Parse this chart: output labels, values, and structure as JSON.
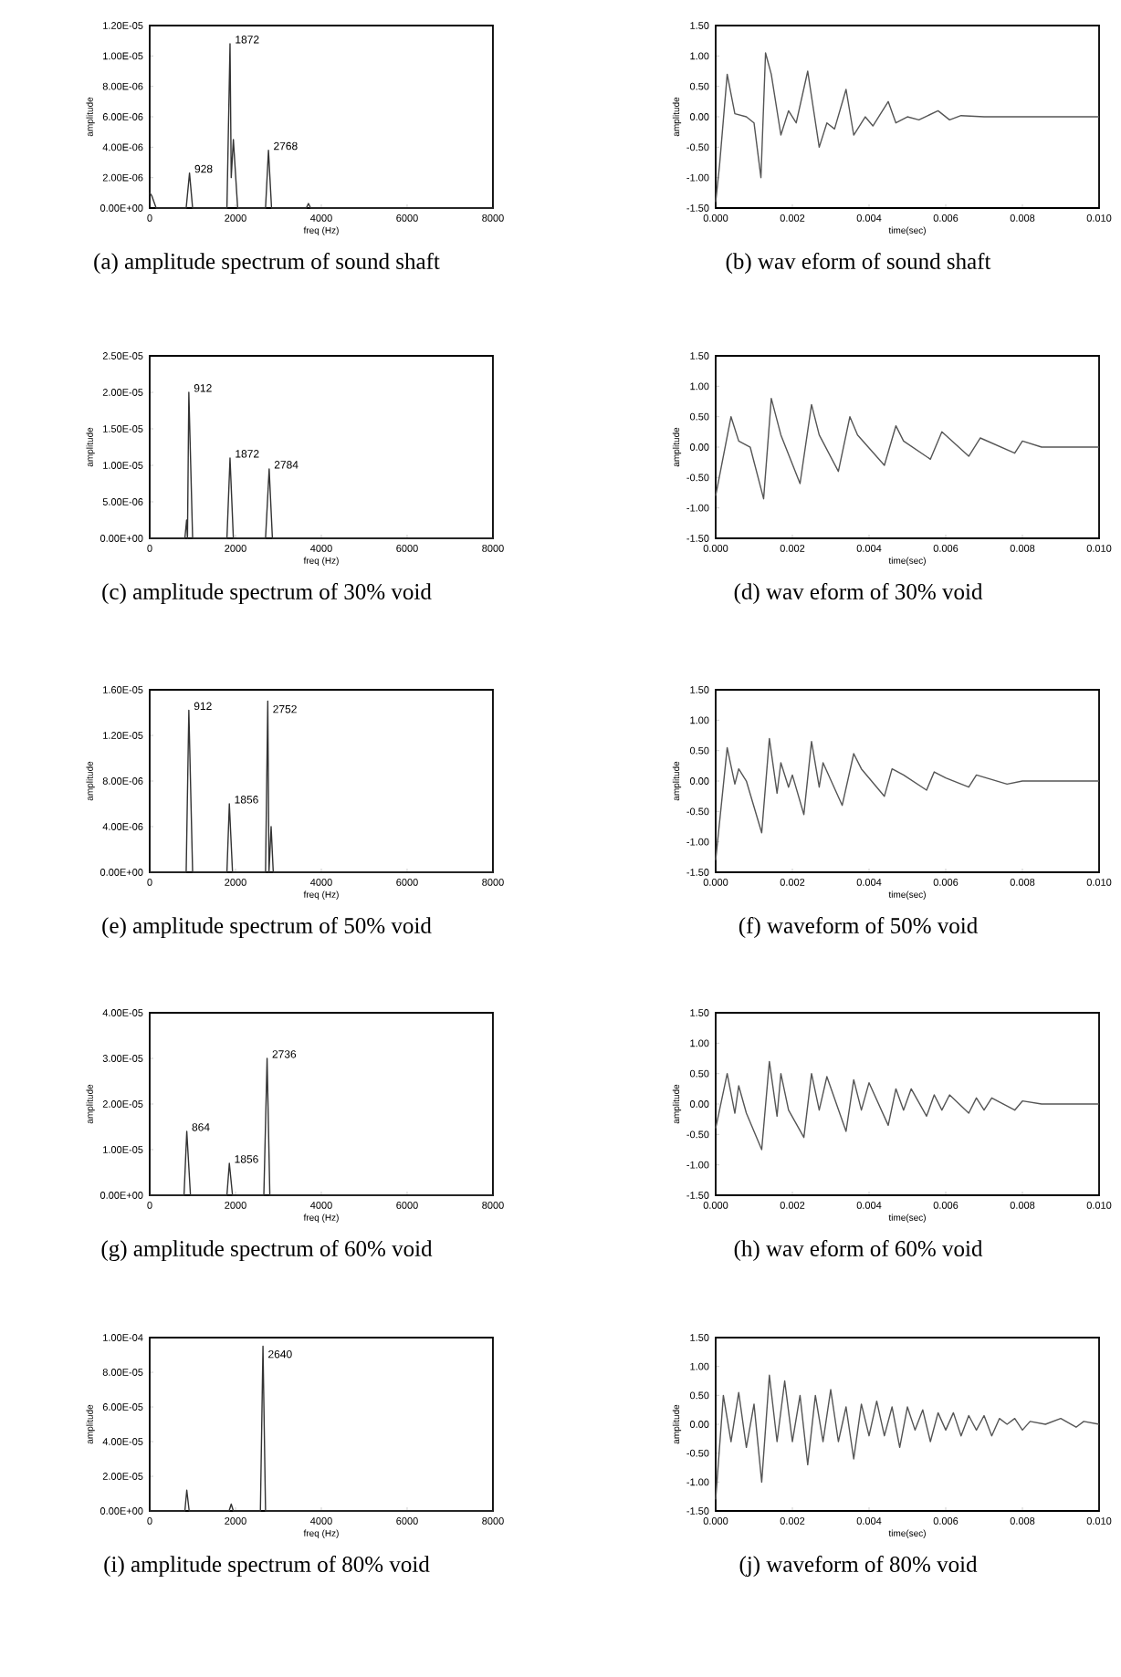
{
  "chart_data": [
    {
      "type": "line",
      "title": "(a) amplitude spectrum of sound shaft",
      "xlabel": "freq (Hz)",
      "ylabel": "amplitude",
      "xlim": [
        0,
        8000
      ],
      "ylim": [
        0,
        1.2e-05
      ],
      "xticks": [
        0,
        2000,
        4000,
        6000,
        8000
      ],
      "yticks": [
        {
          "value": 0,
          "label": "0.00E+00"
        },
        {
          "value": 2e-06,
          "label": "2.00E-06"
        },
        {
          "value": 4e-06,
          "label": "4.00E-06"
        },
        {
          "value": 6e-06,
          "label": "6.00E-06"
        },
        {
          "value": 8e-06,
          "label": "8.00E-06"
        },
        {
          "value": 1e-05,
          "label": "1.00E-05"
        },
        {
          "value": 1.2e-05,
          "label": "1.20E-05"
        }
      ],
      "series": [
        {
          "color": "#333333",
          "x": [
            0,
            50,
            150,
            850,
            928,
            1000,
            1800,
            1872,
            1900,
            1950,
            2050,
            2700,
            2768,
            2840,
            3650,
            3700,
            3750,
            8000
          ],
          "values": [
            1e-06,
            8e-07,
            0,
            0,
            2.3e-06,
            0,
            0,
            1.08e-05,
            2e-06,
            4.5e-06,
            0,
            0,
            3.8e-06,
            0,
            0,
            3e-07,
            0,
            0
          ]
        }
      ],
      "annotations": [
        {
          "text": "928",
          "x": 928,
          "y": 2.3e-06
        },
        {
          "text": "1872",
          "x": 1872,
          "y": 1.08e-05
        },
        {
          "text": "2768",
          "x": 2768,
          "y": 3.8e-06
        }
      ]
    },
    {
      "type": "line",
      "title": "(b) wav eform of sound shaft",
      "xlabel": "time(sec)",
      "ylabel": "amplitude",
      "xlim": [
        0,
        0.01
      ],
      "ylim": [
        -1.5,
        1.5
      ],
      "xticks": [
        {
          "value": 0,
          "label": "0.000"
        },
        {
          "value": 0.002,
          "label": "0.002"
        },
        {
          "value": 0.004,
          "label": "0.004"
        },
        {
          "value": 0.006,
          "label": "0.006"
        },
        {
          "value": 0.008,
          "label": "0.008"
        },
        {
          "value": 0.01,
          "label": "0.010"
        }
      ],
      "yticks": [
        {
          "value": -1.5,
          "label": "-1.50"
        },
        {
          "value": -1,
          "label": "-1.00"
        },
        {
          "value": -0.5,
          "label": "-0.50"
        },
        {
          "value": 0,
          "label": "0.00"
        },
        {
          "value": 0.5,
          "label": "0.50"
        },
        {
          "value": 1,
          "label": "1.00"
        },
        {
          "value": 1.5,
          "label": "1.50"
        }
      ],
      "series": [
        {
          "color": "#555555",
          "x": [
            0,
            0.0001,
            0.0003,
            0.0005,
            0.0008,
            0.001,
            0.00118,
            0.0013,
            0.00145,
            0.0017,
            0.0019,
            0.0021,
            0.0024,
            0.0027,
            0.0029,
            0.0031,
            0.0034,
            0.0036,
            0.0039,
            0.0041,
            0.0045,
            0.0047,
            0.005,
            0.0053,
            0.0058,
            0.0061,
            0.0064,
            0.007,
            0.01
          ],
          "values": [
            -1.4,
            -0.8,
            0.7,
            0.05,
            0,
            -0.1,
            -1.0,
            1.05,
            0.7,
            -0.3,
            0.1,
            -0.1,
            0.75,
            -0.5,
            -0.1,
            -0.2,
            0.45,
            -0.3,
            0,
            -0.15,
            0.25,
            -0.1,
            0,
            -0.05,
            0.1,
            -0.05,
            0.02,
            0,
            0
          ]
        }
      ]
    },
    {
      "type": "line",
      "title": "(c) amplitude spectrum of 30% void",
      "xlabel": "freq (Hz)",
      "ylabel": "amplitude",
      "xlim": [
        0,
        8000
      ],
      "ylim": [
        0,
        2.5e-05
      ],
      "xticks": [
        0,
        2000,
        4000,
        6000,
        8000
      ],
      "yticks": [
        {
          "value": 0,
          "label": "0.00E+00"
        },
        {
          "value": 5e-06,
          "label": "5.00E-06"
        },
        {
          "value": 1e-05,
          "label": "1.00E-05"
        },
        {
          "value": 1.5e-05,
          "label": "1.50E-05"
        },
        {
          "value": 2e-05,
          "label": "2.00E-05"
        },
        {
          "value": 2.5e-05,
          "label": "2.50E-05"
        }
      ],
      "series": [
        {
          "color": "#333333",
          "x": [
            0,
            820,
            860,
            880,
            912,
            1000,
            1050,
            1800,
            1872,
            1950,
            2700,
            2784,
            2860,
            8000
          ],
          "values": [
            0,
            0,
            2.5e-06,
            0,
            2e-05,
            0,
            0,
            0,
            1.1e-05,
            0,
            0,
            9.5e-06,
            0,
            0
          ]
        }
      ],
      "annotations": [
        {
          "text": "912",
          "x": 912,
          "y": 2e-05
        },
        {
          "text": "1872",
          "x": 1872,
          "y": 1.1e-05
        },
        {
          "text": "2784",
          "x": 2784,
          "y": 9.5e-06
        }
      ]
    },
    {
      "type": "line",
      "title": "(d) wav eform of 30% void",
      "xlabel": "time(sec)",
      "ylabel": "amplitude",
      "xlim": [
        0,
        0.01
      ],
      "ylim": [
        -1.5,
        1.5
      ],
      "xticks": [
        {
          "value": 0,
          "label": "0.000"
        },
        {
          "value": 0.002,
          "label": "0.002"
        },
        {
          "value": 0.004,
          "label": "0.004"
        },
        {
          "value": 0.006,
          "label": "0.006"
        },
        {
          "value": 0.008,
          "label": "0.008"
        },
        {
          "value": 0.01,
          "label": "0.010"
        }
      ],
      "yticks": [
        {
          "value": -1.5,
          "label": "-1.50"
        },
        {
          "value": -1,
          "label": "-1.00"
        },
        {
          "value": -0.5,
          "label": "-0.50"
        },
        {
          "value": 0,
          "label": "0.00"
        },
        {
          "value": 0.5,
          "label": "0.50"
        },
        {
          "value": 1,
          "label": "1.00"
        },
        {
          "value": 1.5,
          "label": "1.50"
        }
      ],
      "series": [
        {
          "color": "#555555",
          "x": [
            0,
            0.0004,
            0.0006,
            0.0009,
            0.00125,
            0.00145,
            0.0017,
            0.0022,
            0.0025,
            0.0027,
            0.0032,
            0.0035,
            0.0037,
            0.0044,
            0.0047,
            0.0049,
            0.0056,
            0.0059,
            0.0066,
            0.0069,
            0.0078,
            0.008,
            0.0085,
            0.01
          ],
          "values": [
            -0.8,
            0.5,
            0.1,
            0,
            -0.85,
            0.8,
            0.2,
            -0.6,
            0.7,
            0.2,
            -0.4,
            0.5,
            0.2,
            -0.3,
            0.35,
            0.1,
            -0.2,
            0.25,
            -0.15,
            0.15,
            -0.1,
            0.1,
            0,
            0
          ]
        }
      ]
    },
    {
      "type": "line",
      "title": "(e) amplitude spectrum of 50% void",
      "xlabel": "freq (Hz)",
      "ylabel": "amplitude",
      "xlim": [
        0,
        8000
      ],
      "ylim": [
        0,
        1.6e-05
      ],
      "xticks": [
        0,
        2000,
        4000,
        6000,
        8000
      ],
      "yticks": [
        {
          "value": 0,
          "label": "0.00E+00"
        },
        {
          "value": 4e-06,
          "label": "4.00E-06"
        },
        {
          "value": 8e-06,
          "label": "8.00E-06"
        },
        {
          "value": 1.2e-05,
          "label": "1.20E-05"
        },
        {
          "value": 1.6e-05,
          "label": "1.60E-05"
        }
      ],
      "series": [
        {
          "color": "#333333",
          "x": [
            0,
            850,
            912,
            1000,
            1800,
            1856,
            1930,
            2700,
            2752,
            2780,
            2830,
            2880,
            8000
          ],
          "values": [
            0,
            0,
            1.42e-05,
            0,
            0,
            6e-06,
            0,
            0,
            1.5e-05,
            0,
            4e-06,
            0,
            0
          ]
        }
      ],
      "annotations": [
        {
          "text": "912",
          "x": 912,
          "y": 1.42e-05
        },
        {
          "text": "1856",
          "x": 1856,
          "y": 6e-06
        },
        {
          "text": "2752",
          "x": 2752,
          "y": 1.5e-05
        }
      ]
    },
    {
      "type": "line",
      "title": "(f) waveform of 50% void",
      "xlabel": "time(sec)",
      "ylabel": "amplitude",
      "xlim": [
        0,
        0.01
      ],
      "ylim": [
        -1.5,
        1.5
      ],
      "xticks": [
        {
          "value": 0,
          "label": "0.000"
        },
        {
          "value": 0.002,
          "label": "0.002"
        },
        {
          "value": 0.004,
          "label": "0.004"
        },
        {
          "value": 0.006,
          "label": "0.006"
        },
        {
          "value": 0.008,
          "label": "0.008"
        },
        {
          "value": 0.01,
          "label": "0.010"
        }
      ],
      "yticks": [
        {
          "value": -1.5,
          "label": "-1.50"
        },
        {
          "value": -1,
          "label": "-1.00"
        },
        {
          "value": -0.5,
          "label": "-0.50"
        },
        {
          "value": 0,
          "label": "0.00"
        },
        {
          "value": 0.5,
          "label": "0.50"
        },
        {
          "value": 1,
          "label": "1.00"
        },
        {
          "value": 1.5,
          "label": "1.50"
        }
      ],
      "series": [
        {
          "color": "#555555",
          "x": [
            0,
            0.0003,
            0.0005,
            0.0006,
            0.0008,
            0.0012,
            0.0014,
            0.0016,
            0.0017,
            0.0019,
            0.002,
            0.0023,
            0.0025,
            0.0027,
            0.0028,
            0.0033,
            0.0036,
            0.0038,
            0.0044,
            0.0046,
            0.0049,
            0.0055,
            0.0057,
            0.006,
            0.0066,
            0.0068,
            0.0076,
            0.008,
            0.01
          ],
          "values": [
            -1.3,
            0.55,
            -0.05,
            0.2,
            0,
            -0.85,
            0.7,
            -0.2,
            0.3,
            -0.1,
            0.1,
            -0.55,
            0.65,
            -0.1,
            0.3,
            -0.4,
            0.45,
            0.2,
            -0.25,
            0.2,
            0.1,
            -0.15,
            0.15,
            0.05,
            -0.1,
            0.1,
            -0.05,
            0,
            0
          ]
        }
      ]
    },
    {
      "type": "line",
      "title": "(g) amplitude spectrum of 60% void",
      "xlabel": "freq (Hz)",
      "ylabel": "amplitude",
      "xlim": [
        0,
        8000
      ],
      "ylim": [
        0,
        4e-05
      ],
      "xticks": [
        0,
        2000,
        4000,
        6000,
        8000
      ],
      "yticks": [
        {
          "value": 0,
          "label": "0.00E+00"
        },
        {
          "value": 1e-05,
          "label": "1.00E-05"
        },
        {
          "value": 2e-05,
          "label": "2.00E-05"
        },
        {
          "value": 3e-05,
          "label": "3.00E-05"
        },
        {
          "value": 4e-05,
          "label": "4.00E-05"
        }
      ],
      "series": [
        {
          "color": "#333333",
          "x": [
            0,
            800,
            864,
            950,
            1800,
            1856,
            1930,
            2660,
            2736,
            2800,
            8000
          ],
          "values": [
            0,
            0,
            1.4e-05,
            0,
            0,
            7e-06,
            0,
            0,
            3e-05,
            0,
            0
          ]
        }
      ],
      "annotations": [
        {
          "text": "864",
          "x": 864,
          "y": 1.4e-05
        },
        {
          "text": "1856",
          "x": 1856,
          "y": 7e-06
        },
        {
          "text": "2736",
          "x": 2736,
          "y": 3e-05
        }
      ]
    },
    {
      "type": "line",
      "title": "(h) wav eform of 60% void",
      "xlabel": "time(sec)",
      "ylabel": "amplitude",
      "xlim": [
        0,
        0.01
      ],
      "ylim": [
        -1.5,
        1.5
      ],
      "xticks": [
        {
          "value": 0,
          "label": "0.000"
        },
        {
          "value": 0.002,
          "label": "0.002"
        },
        {
          "value": 0.004,
          "label": "0.004"
        },
        {
          "value": 0.006,
          "label": "0.006"
        },
        {
          "value": 0.008,
          "label": "0.008"
        },
        {
          "value": 0.01,
          "label": "0.010"
        }
      ],
      "yticks": [
        {
          "value": -1.5,
          "label": "-1.50"
        },
        {
          "value": -1,
          "label": "-1.00"
        },
        {
          "value": -0.5,
          "label": "-0.50"
        },
        {
          "value": 0,
          "label": "0.00"
        },
        {
          "value": 0.5,
          "label": "0.50"
        },
        {
          "value": 1,
          "label": "1.00"
        },
        {
          "value": 1.5,
          "label": "1.50"
        }
      ],
      "series": [
        {
          "color": "#555555",
          "x": [
            0,
            0.0003,
            0.0005,
            0.0006,
            0.0008,
            0.0012,
            0.0014,
            0.0016,
            0.0017,
            0.0019,
            0.0023,
            0.0025,
            0.0027,
            0.0029,
            0.0034,
            0.0036,
            0.0038,
            0.004,
            0.0045,
            0.0047,
            0.0049,
            0.0051,
            0.0055,
            0.0057,
            0.0059,
            0.0061,
            0.0066,
            0.0068,
            0.007,
            0.0072,
            0.0078,
            0.008,
            0.0085,
            0.01
          ],
          "values": [
            -0.4,
            0.5,
            -0.15,
            0.3,
            -0.15,
            -0.75,
            0.7,
            -0.2,
            0.5,
            -0.1,
            -0.55,
            0.5,
            -0.1,
            0.45,
            -0.45,
            0.4,
            -0.1,
            0.35,
            -0.35,
            0.25,
            -0.1,
            0.25,
            -0.2,
            0.15,
            -0.1,
            0.15,
            -0.15,
            0.1,
            -0.1,
            0.1,
            -0.1,
            0.05,
            0,
            0
          ]
        }
      ]
    },
    {
      "type": "line",
      "title": "(i) amplitude spectrum of 80% void",
      "xlabel": "freq (Hz)",
      "ylabel": "amplitude",
      "xlim": [
        0,
        8000
      ],
      "ylim": [
        0,
        0.0001
      ],
      "xticks": [
        0,
        2000,
        4000,
        6000,
        8000
      ],
      "yticks": [
        {
          "value": 0,
          "label": "0.00E+00"
        },
        {
          "value": 2e-05,
          "label": "2.00E-05"
        },
        {
          "value": 4e-05,
          "label": "4.00E-05"
        },
        {
          "value": 6e-05,
          "label": "6.00E-05"
        },
        {
          "value": 8e-05,
          "label": "8.00E-05"
        },
        {
          "value": 0.0001,
          "label": "1.00E-04"
        }
      ],
      "series": [
        {
          "color": "#333333",
          "x": [
            0,
            820,
            864,
            920,
            1850,
            1900,
            1950,
            2580,
            2640,
            2700,
            8000
          ],
          "values": [
            0,
            0,
            1.2e-05,
            0,
            0,
            4e-06,
            0,
            0,
            9.5e-05,
            0,
            0
          ]
        }
      ],
      "annotations": [
        {
          "text": "2640",
          "x": 2640,
          "y": 9.5e-05
        }
      ]
    },
    {
      "type": "line",
      "title": "(j) waveform of 80% void",
      "xlabel": "time(sec)",
      "ylabel": "amplitude",
      "xlim": [
        0,
        0.01
      ],
      "ylim": [
        -1.5,
        1.5
      ],
      "xticks": [
        {
          "value": 0,
          "label": "0.000"
        },
        {
          "value": 0.002,
          "label": "0.002"
        },
        {
          "value": 0.004,
          "label": "0.004"
        },
        {
          "value": 0.006,
          "label": "0.006"
        },
        {
          "value": 0.008,
          "label": "0.008"
        },
        {
          "value": 0.01,
          "label": "0.010"
        }
      ],
      "yticks": [
        {
          "value": -1.5,
          "label": "-1.50"
        },
        {
          "value": -1,
          "label": "-1.00"
        },
        {
          "value": -0.5,
          "label": "-0.50"
        },
        {
          "value": 0,
          "label": "0.00"
        },
        {
          "value": 0.5,
          "label": "0.50"
        },
        {
          "value": 1,
          "label": "1.00"
        },
        {
          "value": 1.5,
          "label": "1.50"
        }
      ],
      "series": [
        {
          "color": "#555555",
          "x": [
            0,
            0.0002,
            0.0004,
            0.0006,
            0.0008,
            0.001,
            0.0012,
            0.0014,
            0.0016,
            0.0018,
            0.002,
            0.0022,
            0.0024,
            0.0026,
            0.0028,
            0.003,
            0.0032,
            0.0034,
            0.0036,
            0.0038,
            0.004,
            0.0042,
            0.0044,
            0.0046,
            0.0048,
            0.005,
            0.0052,
            0.0054,
            0.0056,
            0.0058,
            0.006,
            0.0062,
            0.0064,
            0.0066,
            0.0068,
            0.007,
            0.0072,
            0.0074,
            0.0076,
            0.0078,
            0.008,
            0.0082,
            0.0086,
            0.009,
            0.0094,
            0.0096,
            0.01
          ],
          "values": [
            -1.3,
            0.5,
            -0.3,
            0.55,
            -0.4,
            0.35,
            -1.0,
            0.85,
            -0.3,
            0.75,
            -0.3,
            0.5,
            -0.7,
            0.5,
            -0.3,
            0.6,
            -0.3,
            0.3,
            -0.6,
            0.35,
            -0.2,
            0.4,
            -0.2,
            0.3,
            -0.4,
            0.3,
            -0.1,
            0.25,
            -0.3,
            0.2,
            -0.1,
            0.2,
            -0.2,
            0.15,
            -0.1,
            0.15,
            -0.2,
            0.1,
            0,
            0.1,
            -0.1,
            0.05,
            0,
            0.1,
            -0.05,
            0.05,
            0
          ]
        }
      ]
    }
  ]
}
